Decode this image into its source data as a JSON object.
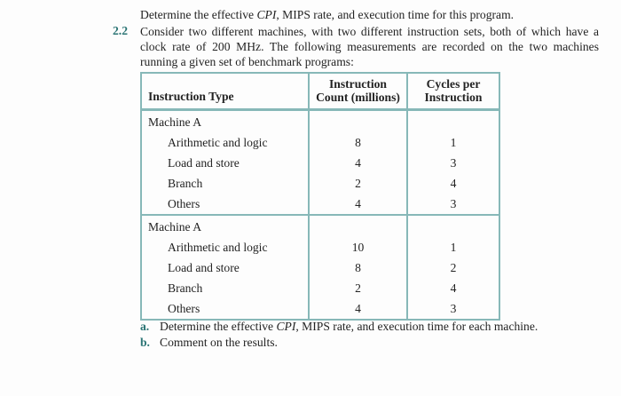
{
  "intro": {
    "pre": "Determine the effective ",
    "italic": "CPI",
    "post": ", MIPS rate, and execution time for this program."
  },
  "problem": {
    "number": "2.2",
    "statement": "Consider two different machines, with two different instruction sets, both of which have a clock rate of 200 MHz. The following measurements are recorded on the two machines running a given set of benchmark programs:"
  },
  "table": {
    "headers": [
      {
        "lines": [
          "Instruction Type",
          ""
        ]
      },
      {
        "lines": [
          "Instruction",
          "Count (millions)"
        ]
      },
      {
        "lines": [
          "Cycles per",
          "Instruction"
        ]
      }
    ],
    "sections": [
      {
        "group": "Machine A",
        "rows": [
          {
            "type": "Arithmetic and logic",
            "count": "8",
            "cpi": "1"
          },
          {
            "type": "Load and store",
            "count": "4",
            "cpi": "3"
          },
          {
            "type": "Branch",
            "count": "2",
            "cpi": "4"
          },
          {
            "type": "Others",
            "count": "4",
            "cpi": "3"
          }
        ]
      },
      {
        "group": "Machine A",
        "rows": [
          {
            "type": "Arithmetic and logic",
            "count": "10",
            "cpi": "1"
          },
          {
            "type": "Load and store",
            "count": "8",
            "cpi": "2"
          },
          {
            "type": "Branch",
            "count": "2",
            "cpi": "4"
          },
          {
            "type": "Others",
            "count": "4",
            "cpi": "3"
          }
        ]
      }
    ]
  },
  "questions": [
    {
      "marker": "a.",
      "pre": "Determine the effective ",
      "italic": "CPI",
      "post": ", MIPS rate, and execution time for each machine."
    },
    {
      "marker": "b.",
      "pre": "Comment on the results.",
      "italic": "",
      "post": ""
    }
  ],
  "colors": {
    "accent_teal": "#2a7474",
    "table_border": "#87b8b8",
    "text": "#232323",
    "background": "#fdfdfd"
  }
}
